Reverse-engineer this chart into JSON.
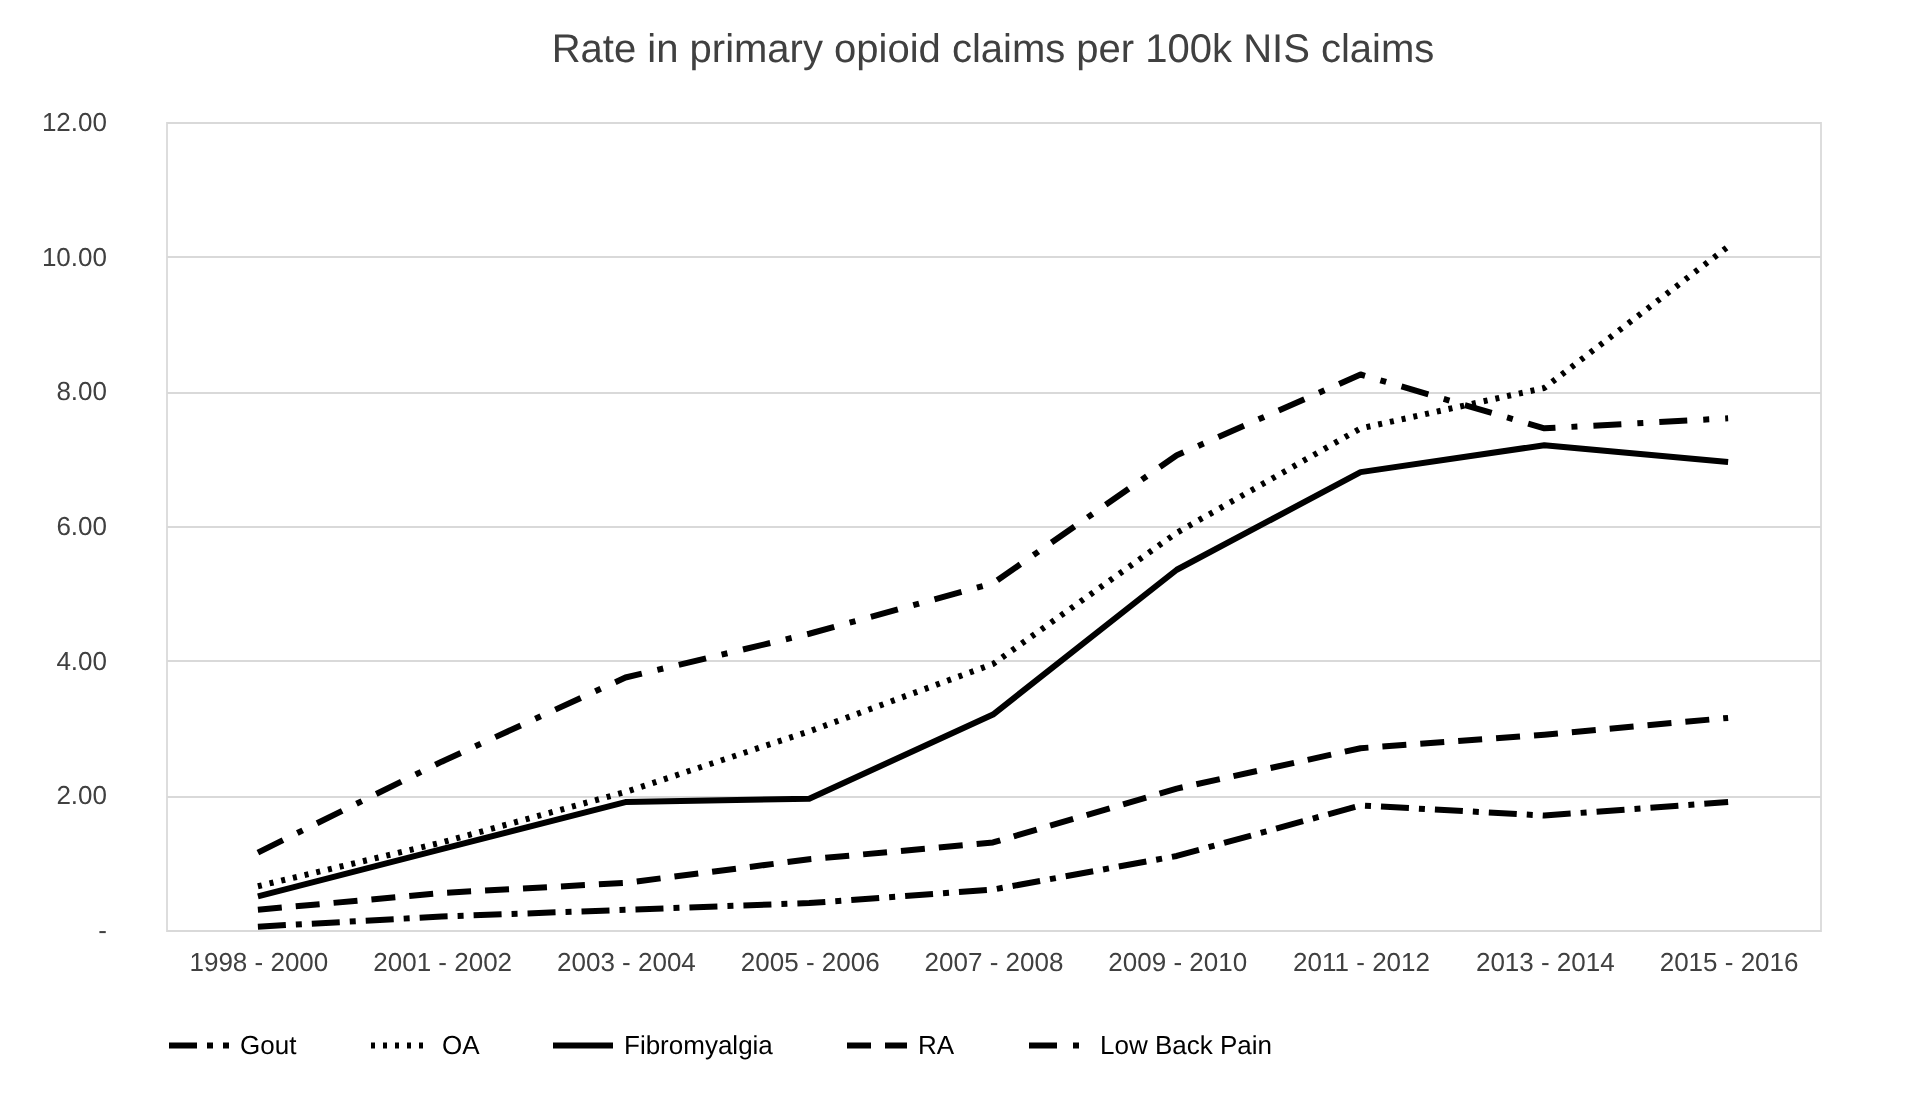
{
  "chart_data": {
    "type": "line",
    "title": "Rate in primary opioid claims per 100k NIS claims",
    "categories": [
      "1998 - 2000",
      "2001 - 2002",
      "2003 - 2004",
      "2005 - 2006",
      "2007 - 2008",
      "2009 - 2010",
      "2011 - 2012",
      "2013 - 2014",
      "2015 - 2016"
    ],
    "series": [
      {
        "name": "Gout",
        "color": "#000000",
        "line_style": "longdashdot",
        "values": [
          0.05,
          0.2,
          0.3,
          0.4,
          0.6,
          1.1,
          1.85,
          1.7,
          1.9
        ]
      },
      {
        "name": "OA",
        "color": "#000000",
        "line_style": "dotted",
        "values": [
          0.65,
          1.3,
          2.05,
          2.95,
          3.95,
          5.9,
          7.45,
          8.05,
          10.15
        ]
      },
      {
        "name": "Fibromyalgia",
        "color": "#000000",
        "line_style": "solid",
        "values": [
          0.5,
          1.2,
          1.9,
          1.95,
          3.2,
          5.35,
          6.8,
          7.2,
          6.95
        ]
      },
      {
        "name": "RA",
        "color": "#000000",
        "line_style": "dashed",
        "values": [
          0.3,
          0.55,
          0.7,
          1.05,
          1.3,
          2.1,
          2.7,
          2.9,
          3.15
        ]
      },
      {
        "name": "Low Back Pain",
        "color": "#000000",
        "line_style": "dashdot",
        "values": [
          1.15,
          2.5,
          3.75,
          4.4,
          5.15,
          7.05,
          8.25,
          7.45,
          7.6
        ]
      }
    ],
    "ylim": [
      0,
      12
    ],
    "yticks": [
      {
        "value": 0,
        "label": "-"
      },
      {
        "value": 2,
        "label": "2.00"
      },
      {
        "value": 4,
        "label": "4.00"
      },
      {
        "value": 6,
        "label": "6.00"
      },
      {
        "value": 8,
        "label": "8.00"
      },
      {
        "value": 10,
        "label": "10.00"
      },
      {
        "value": 12,
        "label": "12.00"
      }
    ],
    "grid": "y",
    "legend": "bottom",
    "marker": "none"
  }
}
